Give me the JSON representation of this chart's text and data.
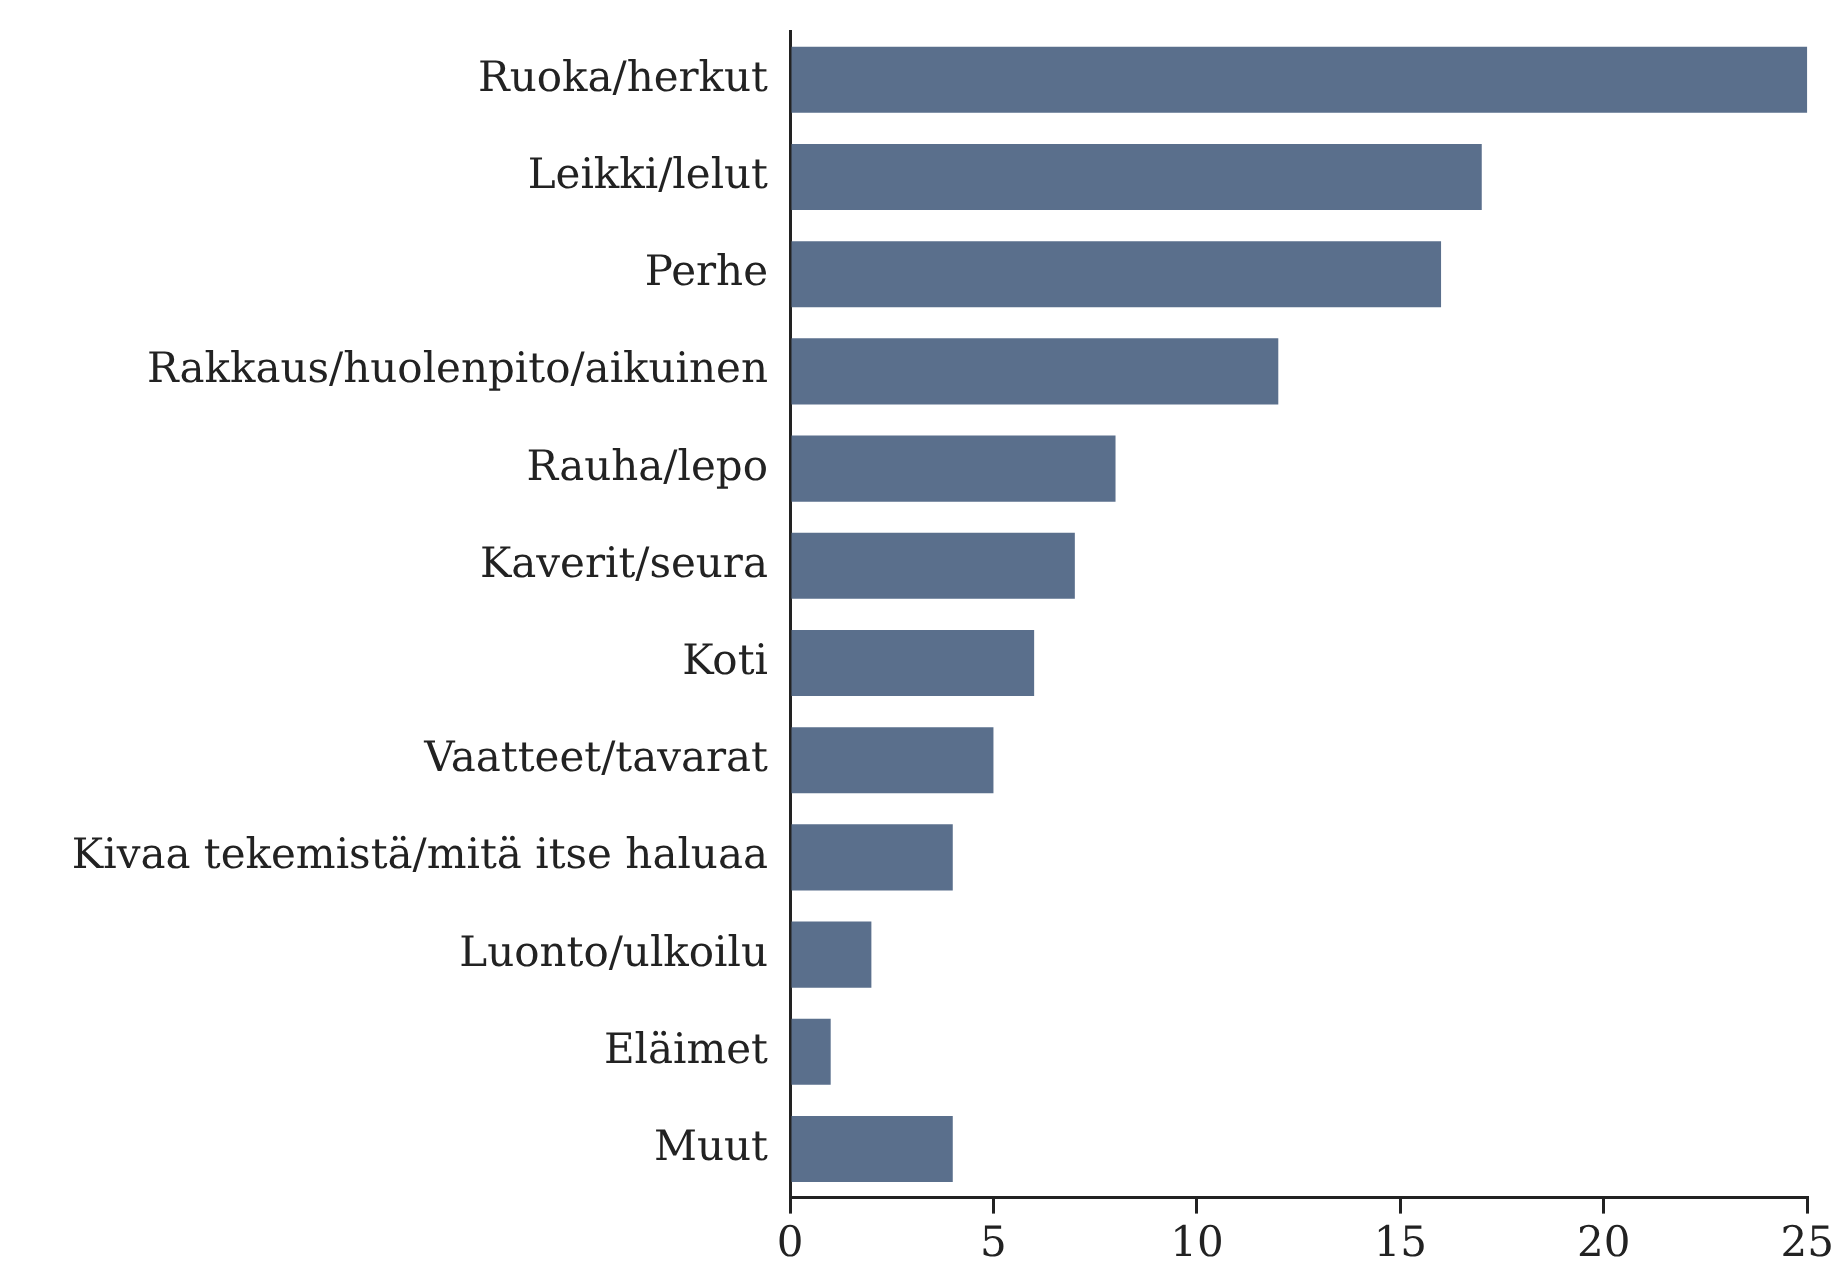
{
  "chart_data": {
    "type": "bar",
    "orientation": "horizontal",
    "categories": [
      "Ruoka/herkut",
      "Leikki/lelut",
      "Perhe",
      "Rakkaus/huolenpito/aikuinen",
      "Rauha/lepo",
      "Kaverit/seura",
      "Koti",
      "Vaatteet/tavarat",
      "Kivaa tekemistä/mitä itse haluaa",
      "Luonto/ulkoilu",
      "Eläimet",
      "Muut"
    ],
    "values": [
      25,
      17,
      16,
      12,
      8,
      7,
      6,
      5,
      4,
      2,
      1,
      4
    ],
    "color": "#5a6f8c",
    "xlim": [
      0,
      25
    ],
    "xticks": [
      0,
      5,
      10,
      15,
      20,
      25
    ],
    "grid": false,
    "legend": false
  }
}
